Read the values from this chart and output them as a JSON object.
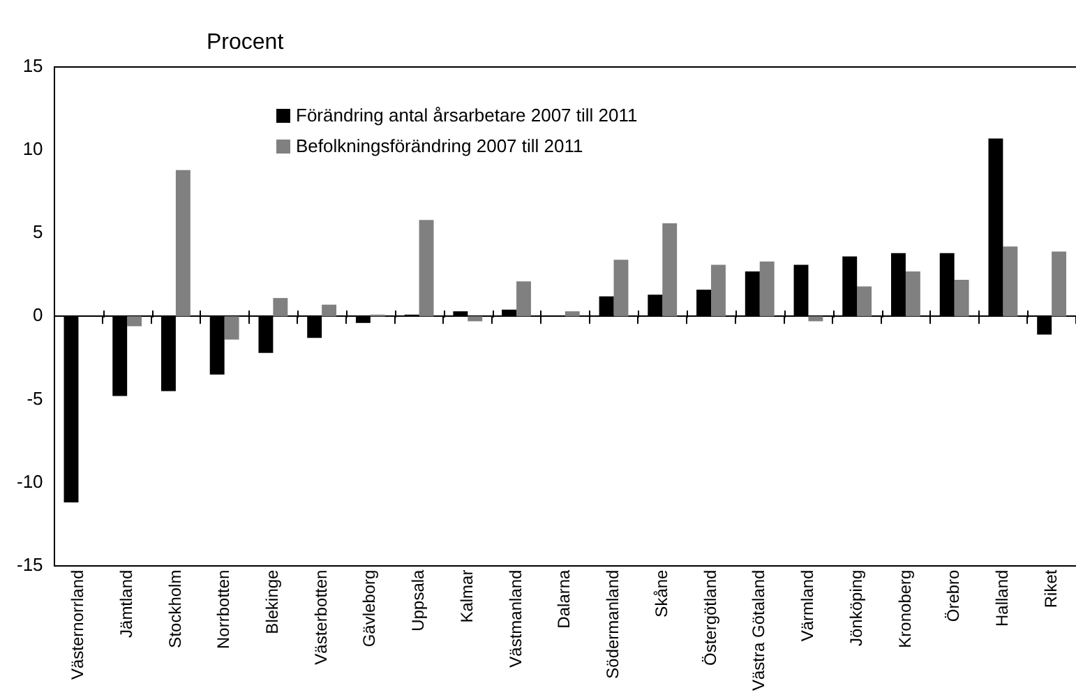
{
  "chart_data": {
    "type": "bar",
    "ylabel": "Procent",
    "categories": [
      "Västernorrland",
      "Jämtland",
      "Stockholm",
      "Norrbotten",
      "Blekinge",
      "Västerbotten",
      "Gävleborg",
      "Uppsala",
      "Kalmar",
      "Västmanland",
      "Dalarna",
      "Södermanland",
      "Skåne",
      "Östergötland",
      "Västra Götaland",
      "Värmland",
      "Jönköping",
      "Kronoberg",
      "Örebro",
      "Halland",
      "Riket"
    ],
    "series": [
      {
        "name": "Förändring antal årsarbetare 2007 till 2011",
        "color": "#000000",
        "values": [
          -11.2,
          -4.8,
          -4.5,
          -3.5,
          -2.2,
          -1.3,
          -0.4,
          0.1,
          0.3,
          0.4,
          0,
          1.2,
          1.3,
          1.6,
          2.7,
          3.1,
          3.6,
          3.8,
          3.8,
          10.7,
          -1.1
        ]
      },
      {
        "name": "Befolkningsförändring 2007 till 2011",
        "color": "#808080",
        "values": [
          0,
          -0.6,
          8.8,
          -1.4,
          1.1,
          0.7,
          0.1,
          5.8,
          -0.3,
          2.1,
          0.3,
          3.4,
          5.6,
          3.1,
          3.3,
          -0.3,
          1.8,
          2.7,
          2.2,
          4.2,
          3.9
        ]
      }
    ],
    "ylim": [
      -15,
      15
    ],
    "yticks": [
      -15,
      -10,
      -5,
      0,
      5,
      10,
      15
    ],
    "legend": "top left"
  }
}
